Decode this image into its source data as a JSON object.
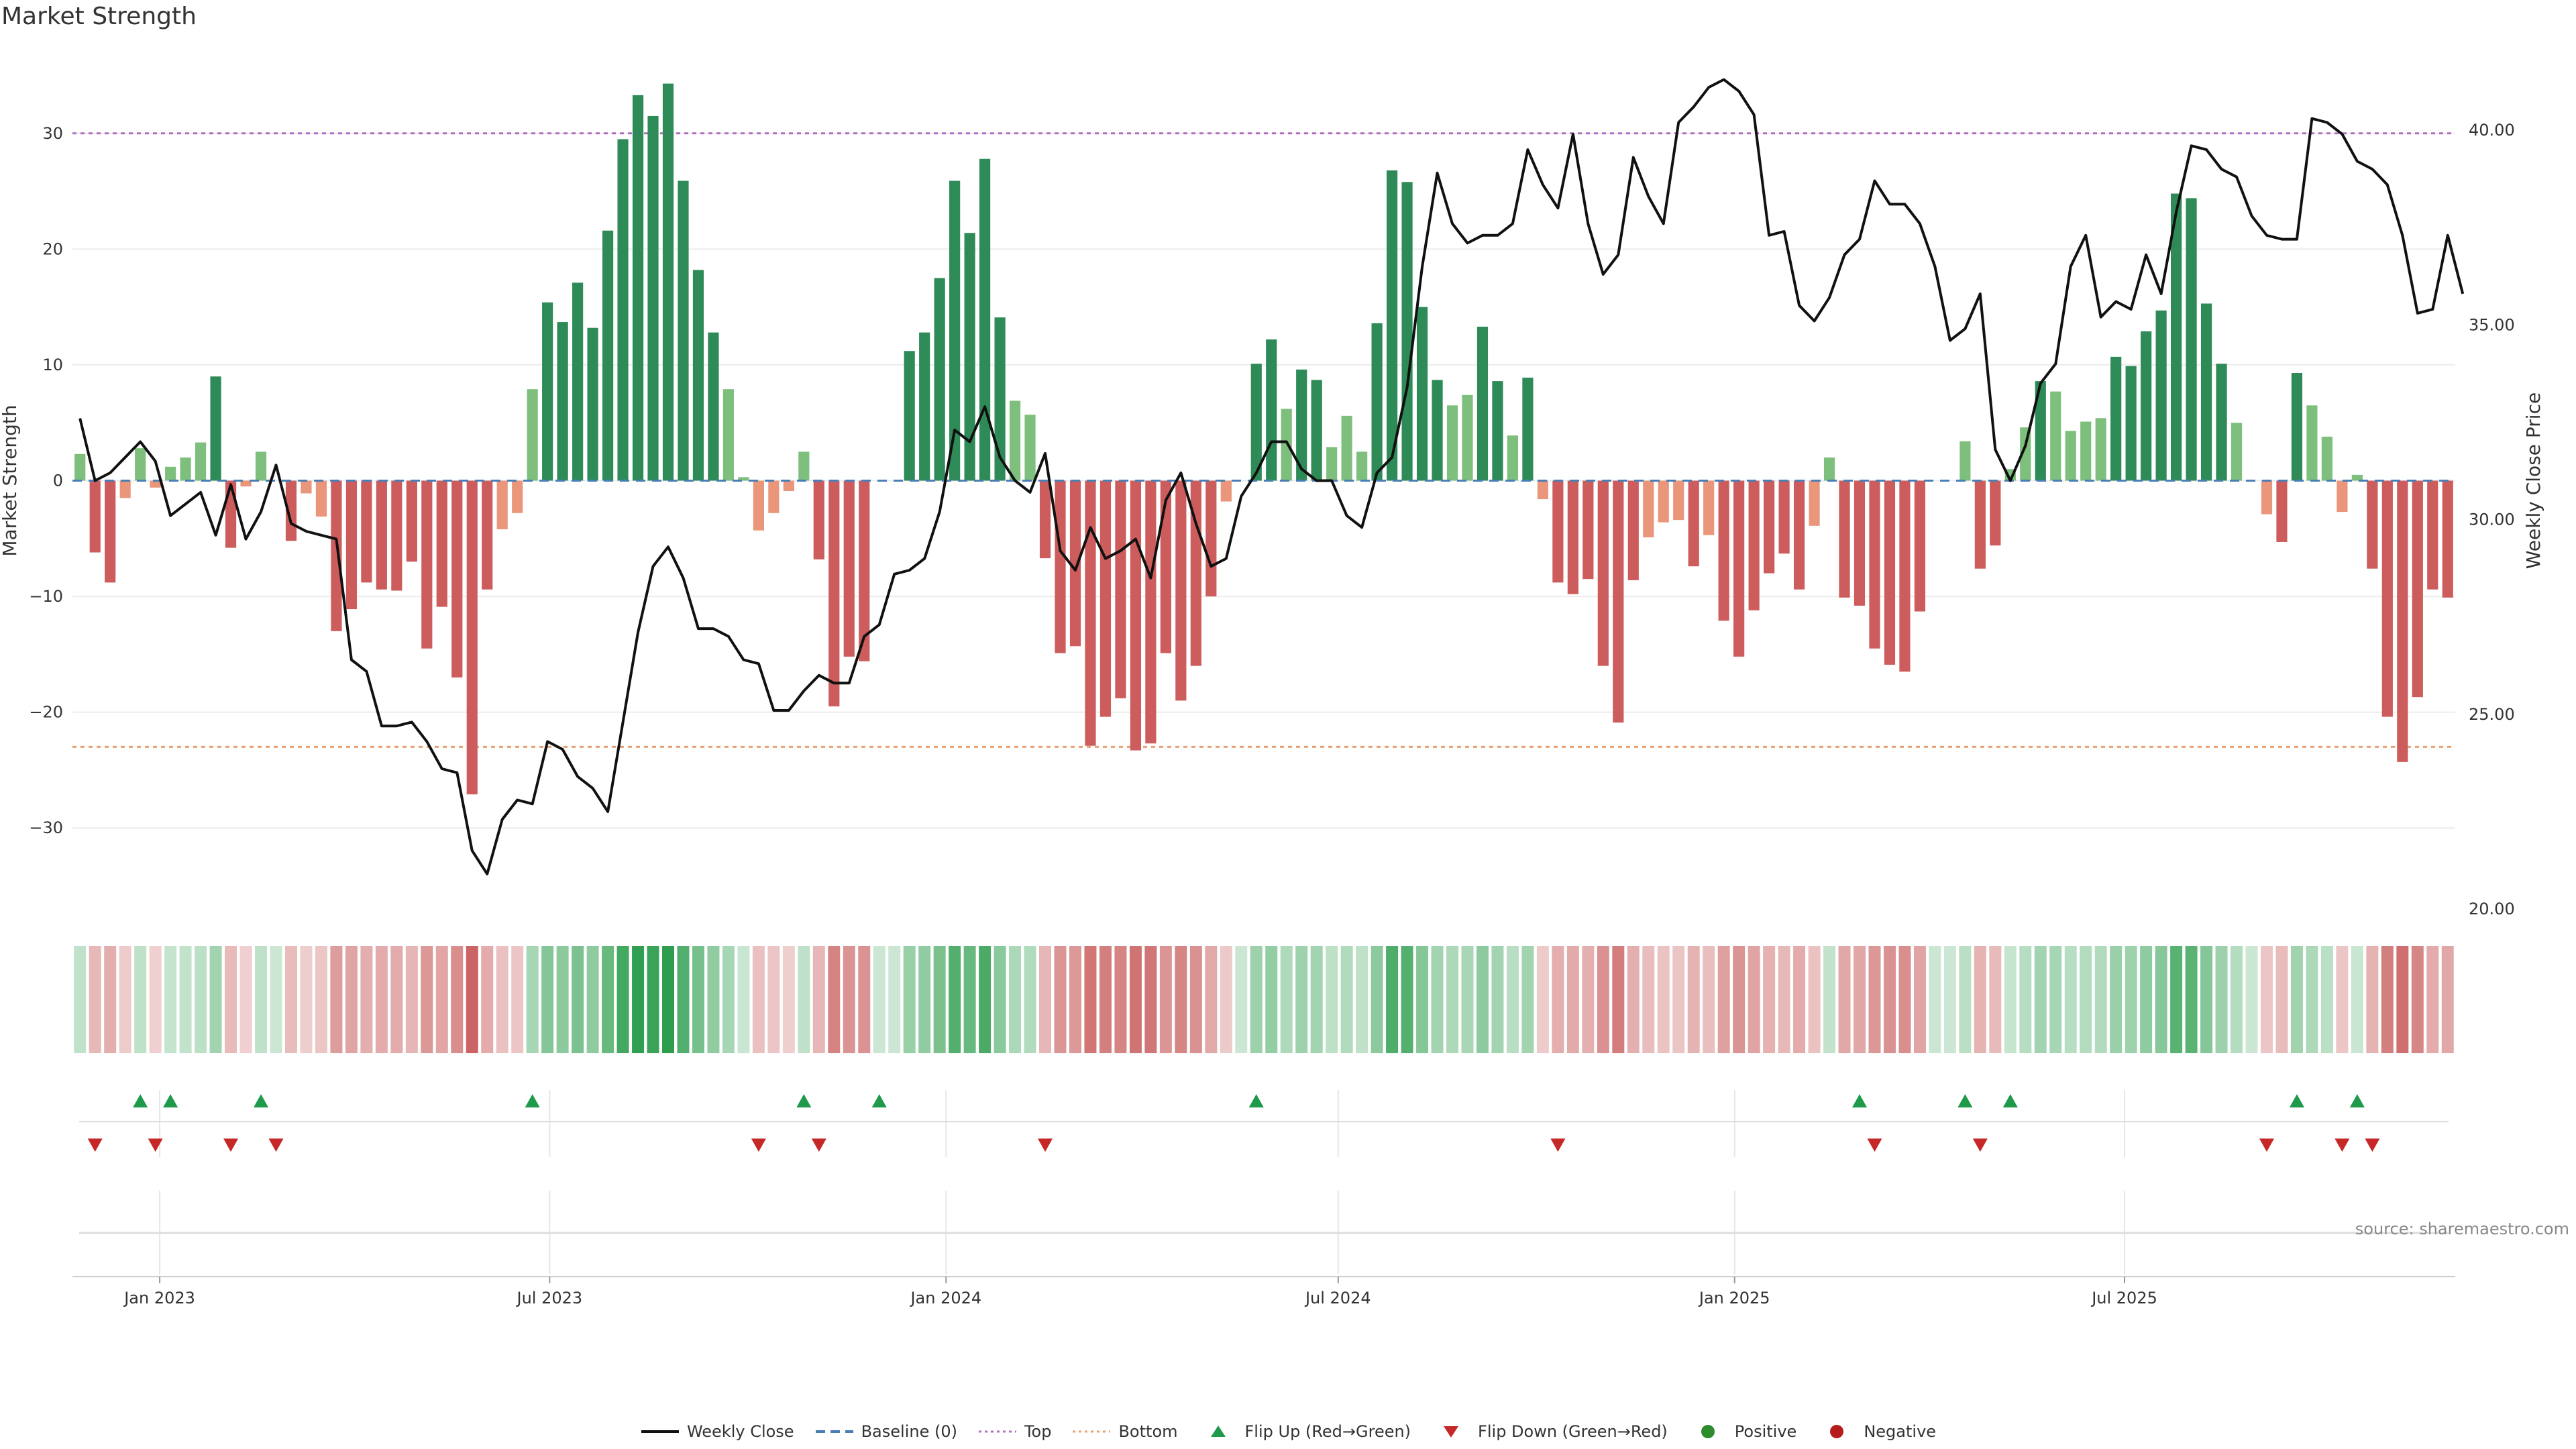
{
  "title": "Market Strength",
  "source": "source: sharemaestro.com",
  "colors": {
    "strong_green": "#2e8b57",
    "light_green": "#7ebf7e",
    "strong_red": "#cd5c5c",
    "light_red": "#e9967a",
    "top_line": "#b070c0",
    "bottom_line": "#e8a070",
    "baseline": "#4a7fb5",
    "close_line": "#111111",
    "flip_up": "#1e9a4a",
    "flip_down": "#c62828",
    "positive": "#2e8b2e",
    "negative": "#b71c1c"
  },
  "legend": [
    {
      "label": "Weekly Close",
      "kind": "solid-line",
      "color": "#111111"
    },
    {
      "label": "Baseline (0)",
      "kind": "dashed-line",
      "color": "#4a7fb5"
    },
    {
      "label": "Top",
      "kind": "dotted-line",
      "color": "#b070c0"
    },
    {
      "label": "Bottom",
      "kind": "dotted-line",
      "color": "#e8a070"
    },
    {
      "label": "Flip Up (Red→Green)",
      "kind": "triangle-up",
      "color": "#1e9a4a"
    },
    {
      "label": "Flip Down (Green→Red)",
      "kind": "triangle-down",
      "color": "#c62828"
    },
    {
      "label": "Positive",
      "kind": "circle",
      "color": "#2e8b2e"
    },
    {
      "label": "Negative",
      "kind": "circle",
      "color": "#b71c1c"
    }
  ],
  "chart_data": {
    "type": "bar",
    "start_week": "2022-11-25",
    "interval_days": 7,
    "ylabel": "Market Strength",
    "y2label": "Weekly Close Price",
    "ylim": [
      -37,
      37
    ],
    "y2lim": [
      20,
      42
    ],
    "yticks": [
      30,
      20,
      10,
      0,
      -10,
      -20,
      -30
    ],
    "yticklabels": [
      "30",
      "20",
      "10",
      "0",
      "−10",
      "−20",
      "−30"
    ],
    "y2ticks": [
      40,
      35,
      30,
      25,
      20
    ],
    "y2ticklabels": [
      "40.00",
      "35.00",
      "30.00",
      "25.00",
      "20.00"
    ],
    "xticklabels": [
      {
        "date": "2023-01-01",
        "label": "Jan 2023"
      },
      {
        "date": "2023-07-01",
        "label": "Jul 2023"
      },
      {
        "date": "2024-01-01",
        "label": "Jan 2024"
      },
      {
        "date": "2024-07-01",
        "label": "Jul 2024"
      },
      {
        "date": "2025-01-01",
        "label": "Jan 2025"
      },
      {
        "date": "2025-07-01",
        "label": "Jul 2025"
      }
    ],
    "top_level": 30,
    "bottom_level": -23,
    "baseline": 0,
    "strength": [
      2.3,
      -6.2,
      -8.8,
      -1.5,
      2.8,
      -0.6,
      1.2,
      2.0,
      3.3,
      9.0,
      -5.8,
      -0.5,
      2.5,
      0,
      -5.2,
      -1.1,
      -3.1,
      -13.0,
      -11.1,
      -8.8,
      -9.4,
      -9.5,
      -7.0,
      -14.5,
      -10.9,
      -17.0,
      -27.1,
      -9.4,
      -4.2,
      -2.8,
      7.9,
      15.4,
      13.7,
      17.1,
      13.2,
      21.6,
      29.5,
      33.3,
      31.5,
      34.3,
      25.9,
      18.2,
      12.8,
      7.9,
      0.3,
      -4.3,
      -2.8,
      -0.9,
      2.5,
      -6.8,
      -19.5,
      -15.2,
      -15.6,
      0,
      0,
      11.2,
      12.8,
      17.5,
      25.9,
      21.4,
      27.8,
      14.1,
      6.9,
      5.7,
      -6.7,
      -14.9,
      -14.3,
      -22.9,
      -20.4,
      -18.8,
      -23.3,
      -22.7,
      -14.9,
      -19.0,
      -16.0,
      -10.0,
      -1.8,
      0,
      10.1,
      12.2,
      6.2,
      9.6,
      8.7,
      2.9,
      5.6,
      2.5,
      13.6,
      26.8,
      25.8,
      15.0,
      8.7,
      6.5,
      7.4,
      13.3,
      8.6,
      3.9,
      8.9,
      -1.6,
      -8.8,
      -9.8,
      -8.5,
      -16.0,
      -20.9,
      -8.6,
      -4.9,
      -3.6,
      -3.4,
      -7.4,
      -4.7,
      -12.1,
      -15.2,
      -11.2,
      -8.0,
      -6.3,
      -9.4,
      -3.9,
      2.0,
      -10.1,
      -10.8,
      -14.5,
      -15.9,
      -16.5,
      -11.3,
      0,
      0,
      3.4,
      -7.6,
      -5.6,
      1.0,
      4.6,
      8.6,
      7.7,
      4.3,
      5.1,
      5.4,
      10.7,
      9.9,
      12.9,
      14.7,
      24.8,
      24.4,
      15.3,
      10.1,
      5.0,
      0,
      -2.9,
      -5.3,
      9.3,
      6.5,
      3.8,
      -2.7,
      0.5,
      -7.6,
      -20.4,
      -24.3,
      -18.7,
      -9.4,
      -10.1
    ],
    "weekly_close": [
      32.6,
      31.0,
      31.2,
      31.6,
      32.0,
      31.5,
      30.1,
      30.4,
      30.7,
      29.6,
      30.9,
      29.5,
      30.2,
      31.4,
      29.9,
      29.7,
      29.6,
      29.5,
      26.4,
      26.1,
      24.7,
      24.7,
      24.8,
      24.3,
      23.6,
      23.5,
      21.5,
      20.9,
      22.3,
      22.8,
      22.7,
      24.3,
      24.1,
      23.4,
      23.1,
      22.5,
      24.8,
      27.1,
      28.8,
      29.3,
      28.5,
      27.2,
      27.2,
      27.0,
      26.4,
      26.3,
      25.1,
      25.1,
      25.6,
      26.0,
      25.8,
      25.8,
      27.0,
      27.3,
      28.6,
      28.7,
      29.0,
      30.2,
      32.3,
      32.0,
      32.9,
      31.6,
      31.0,
      30.7,
      31.7,
      29.2,
      28.7,
      29.8,
      29.0,
      29.2,
      29.5,
      28.5,
      30.5,
      31.2,
      29.9,
      28.8,
      29.0,
      30.6,
      31.2,
      32.0,
      32.0,
      31.3,
      31.0,
      31.0,
      30.1,
      29.8,
      31.2,
      31.6,
      33.4,
      36.5,
      38.9,
      37.6,
      37.1,
      37.3,
      37.3,
      37.6,
      39.5,
      38.6,
      38.0,
      39.9,
      37.6,
      36.3,
      36.8,
      39.3,
      38.3,
      37.6,
      40.2,
      40.6,
      41.1,
      41.3,
      41.0,
      40.4,
      37.3,
      37.4,
      35.5,
      35.1,
      35.7,
      36.8,
      37.2,
      38.7,
      38.1,
      38.1,
      37.6,
      36.5,
      34.6,
      34.9,
      35.8,
      31.8,
      31.0,
      31.9,
      33.5,
      34.0,
      36.5,
      37.3,
      35.2,
      35.6,
      35.4,
      36.8,
      35.8,
      37.9,
      39.6,
      39.5,
      39.0,
      38.8,
      37.8,
      37.3,
      37.2,
      37.2,
      40.3,
      40.2,
      39.9,
      39.2,
      39.0,
      38.6,
      37.3,
      35.3,
      35.4,
      37.3,
      35.8
    ]
  },
  "flip_up_weeks": [
    4,
    6,
    12,
    30,
    48,
    53,
    78,
    118,
    125,
    128,
    147,
    151
  ],
  "flip_down_weeks": [
    1,
    5,
    10,
    13,
    45,
    49,
    64,
    98,
    119,
    126,
    145,
    150,
    152
  ]
}
